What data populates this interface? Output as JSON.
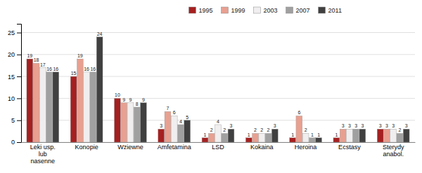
{
  "chart_data": {
    "type": "bar",
    "categories": [
      "Leki usp.\nlub\nnasenne",
      "Konopie",
      "Wziewne",
      "Amfetamina",
      "LSD",
      "Kokaina",
      "Heroina",
      "Ecstasy",
      "Sterydy\nanabol."
    ],
    "series": [
      {
        "name": "1995",
        "color": "#a52020",
        "values": [
          19,
          15,
          10,
          3,
          1,
          1,
          1,
          1,
          3
        ]
      },
      {
        "name": "1999",
        "color": "#e8a090",
        "values": [
          18,
          19,
          9,
          7,
          2,
          2,
          6,
          3,
          3
        ]
      },
      {
        "name": "2003",
        "color": "#f0eeee",
        "values": [
          17,
          16,
          9,
          6,
          4,
          2,
          2,
          3,
          3
        ]
      },
      {
        "name": "2007",
        "color": "#a0a0a0",
        "values": [
          16,
          16,
          8,
          4,
          2,
          2,
          1,
          3,
          2
        ]
      },
      {
        "name": "2011",
        "color": "#404040",
        "values": [
          16,
          24,
          9,
          5,
          3,
          3,
          1,
          3,
          3
        ]
      }
    ],
    "ylim": [
      0,
      27
    ],
    "yticks": [
      0,
      5,
      10,
      15,
      20,
      25
    ],
    "grid": true,
    "legend": "top",
    "data_labels": true
  }
}
